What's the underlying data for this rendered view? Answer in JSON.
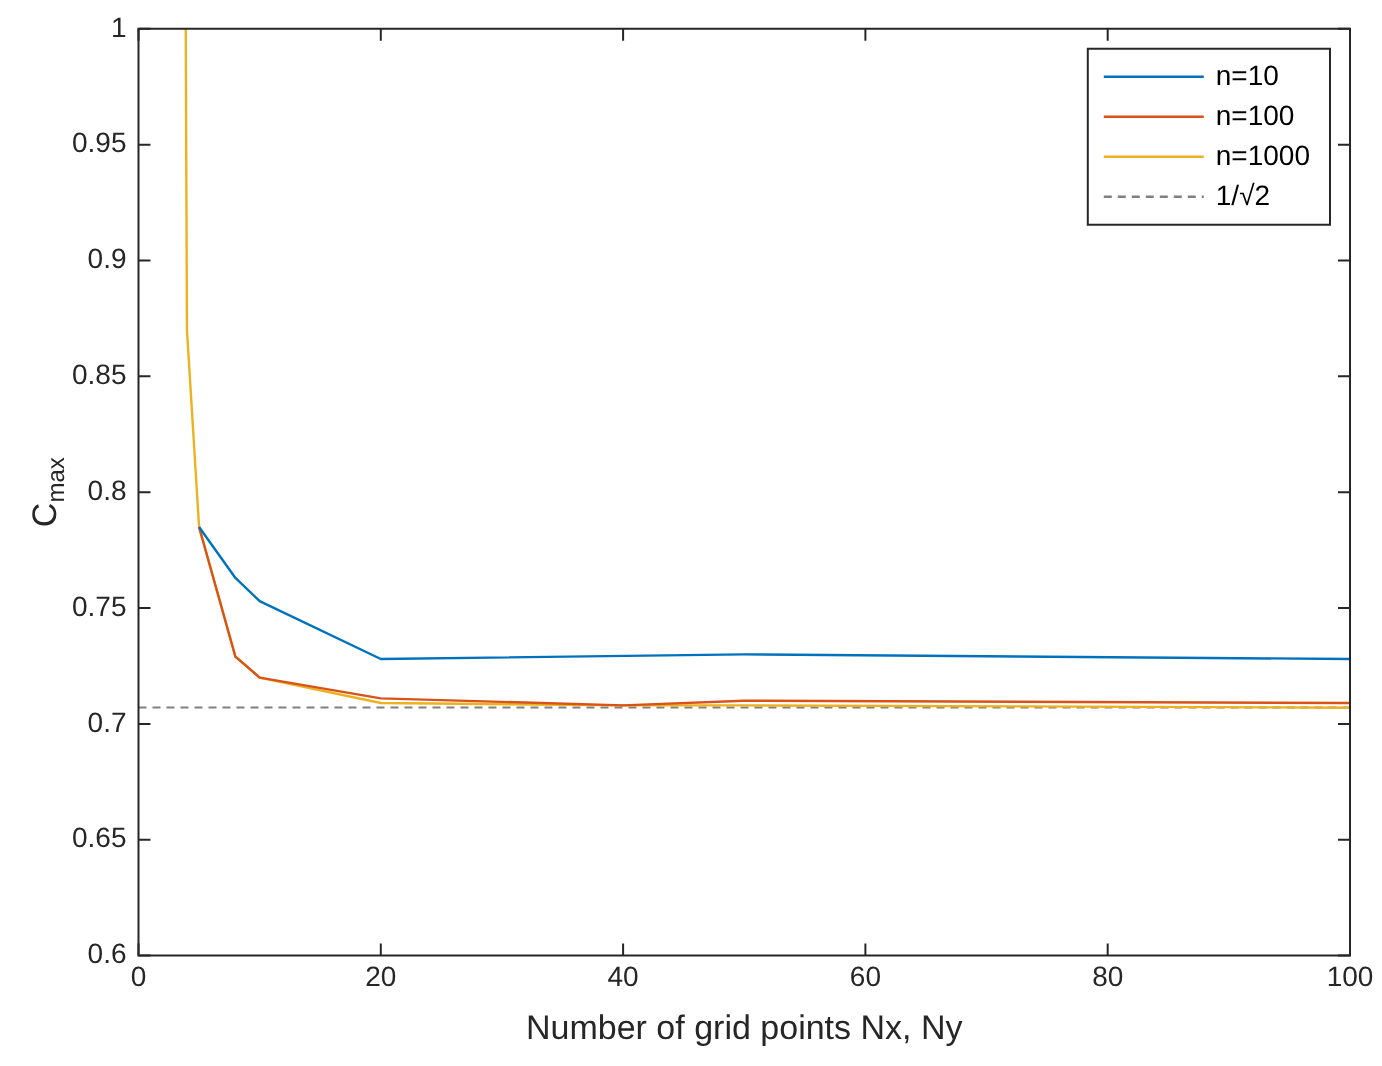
{
  "chart_data": {
    "type": "line",
    "xlabel": "Number of grid points Nx, Ny",
    "ylabel": "C$_{max}$",
    "xlim": [
      0,
      100
    ],
    "xticks": [
      0,
      20,
      40,
      60,
      80,
      100
    ],
    "ylim": [
      0.6,
      1
    ],
    "yticks": [
      0.6,
      0.65,
      0.7,
      0.75,
      0.8,
      0.85,
      0.9,
      0.95,
      1
    ],
    "grid": false,
    "legend": "top right",
    "marker": "none",
    "line_style": "solid",
    "series": [
      {
        "name": "n=10",
        "color": "#0072bd",
        "x": [
          5,
          8,
          10,
          20,
          50,
          100
        ],
        "values": [
          0.785,
          0.763,
          0.753,
          0.728,
          0.73,
          0.728
        ]
      },
      {
        "name": "n=100",
        "color": "#d95319",
        "x": [
          5,
          8,
          10,
          20,
          40,
          50,
          100
        ],
        "values": [
          0.785,
          0.729,
          0.72,
          0.711,
          0.708,
          0.71,
          0.709
        ]
      },
      {
        "name": "n=1000",
        "color": "#edb120",
        "x": [
          3.9,
          4,
          5,
          8,
          10,
          20,
          40,
          50,
          100
        ],
        "values": [
          1,
          0.87,
          0.785,
          0.729,
          0.72,
          0.709,
          0.708,
          0.708,
          0.707
        ]
      }
    ],
    "ref_lines": [
      {
        "axis": "y",
        "value": 0.7071,
        "label": "1/√2",
        "color": "#808080",
        "line_style": "dashed"
      }
    ]
  }
}
